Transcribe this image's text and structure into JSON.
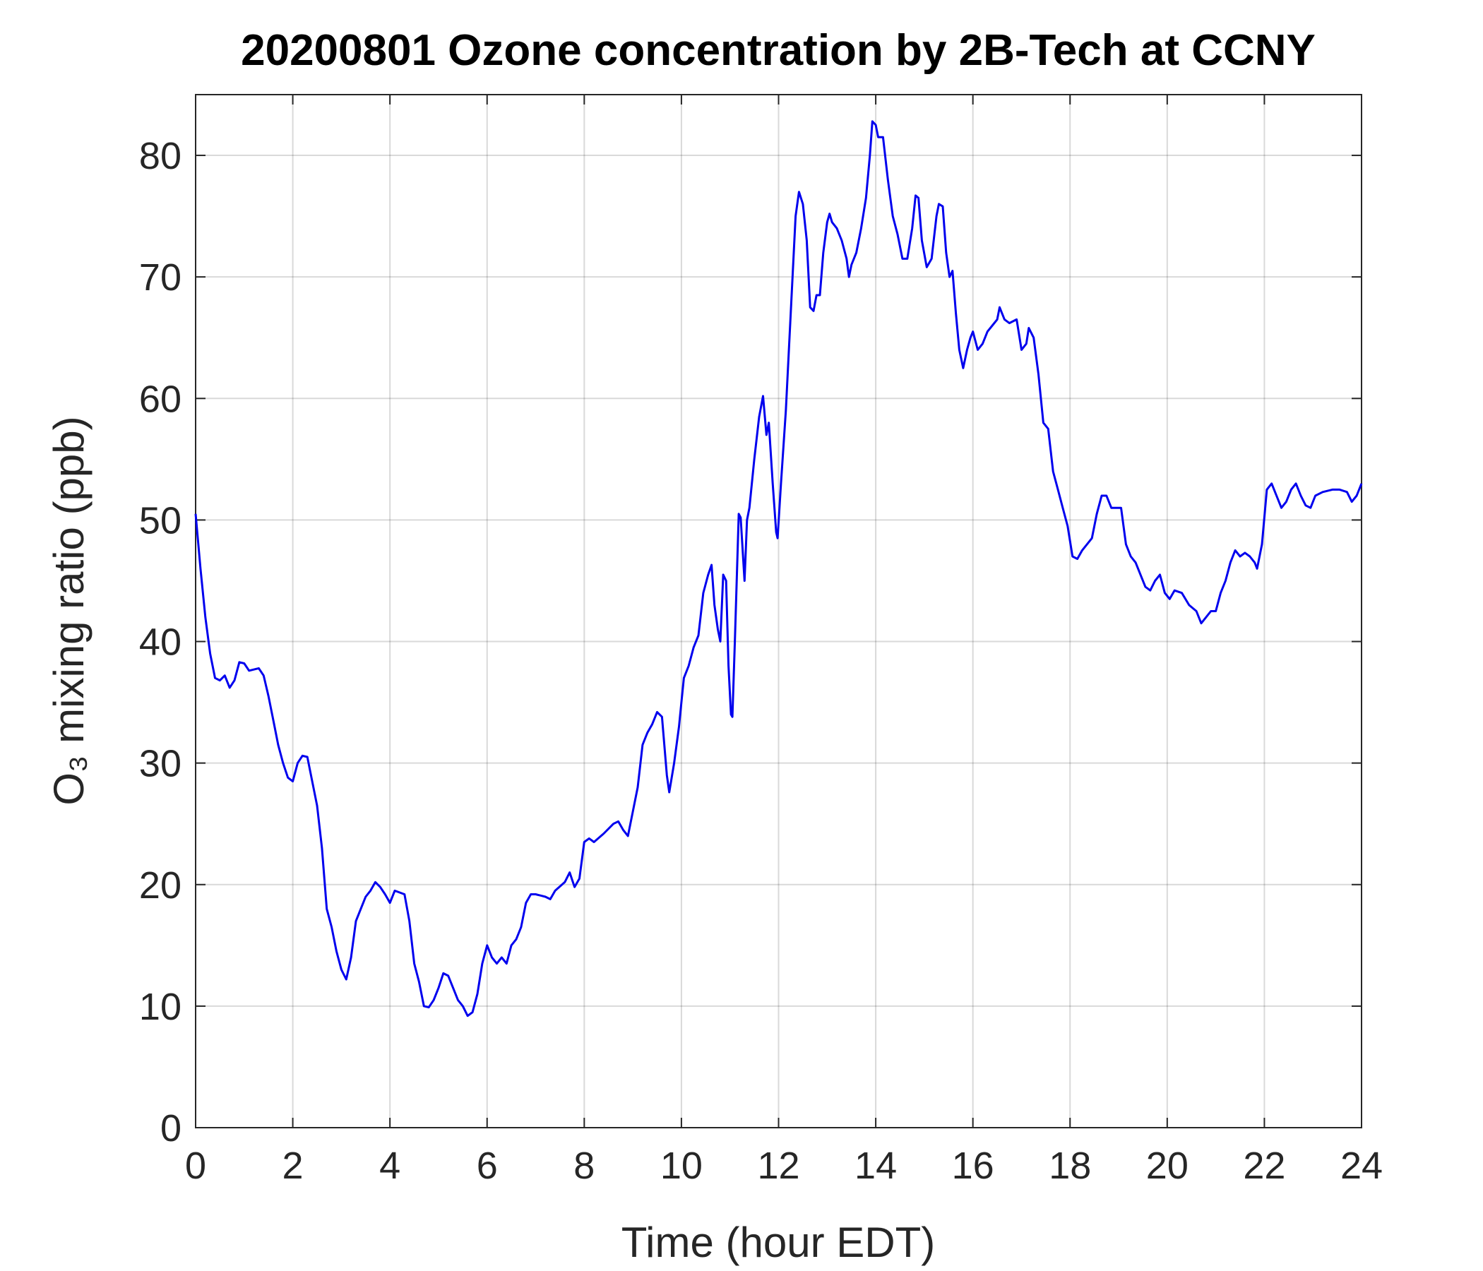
{
  "chart_data": {
    "type": "line",
    "title": "20200801 Ozone concentration by 2B-Tech at CCNY",
    "x_label": "Time (hour EDT)",
    "y_label": "O₃ mixing ratio (ppb)",
    "xlim": [
      0,
      24
    ],
    "ylim": [
      0,
      85
    ],
    "xticks": [
      0,
      2,
      4,
      6,
      8,
      10,
      12,
      14,
      16,
      18,
      20,
      22,
      24
    ],
    "yticks": [
      0,
      10,
      20,
      30,
      40,
      50,
      60,
      70,
      80
    ],
    "grid": true,
    "x": [
      0,
      0.1,
      0.2,
      0.3,
      0.4,
      0.5,
      0.6,
      0.7,
      0.8,
      0.9,
      1.0,
      1.1,
      1.3,
      1.4,
      1.5,
      1.6,
      1.7,
      1.8,
      1.9,
      2.0,
      2.1,
      2.2,
      2.3,
      2.4,
      2.5,
      2.6,
      2.7,
      2.8,
      2.9,
      3.0,
      3.1,
      3.2,
      3.3,
      3.4,
      3.5,
      3.6,
      3.7,
      3.8,
      3.9,
      4.0,
      4.1,
      4.3,
      4.4,
      4.5,
      4.6,
      4.7,
      4.8,
      4.9,
      5.0,
      5.1,
      5.2,
      5.3,
      5.4,
      5.5,
      5.6,
      5.7,
      5.8,
      5.9,
      6.0,
      6.1,
      6.2,
      6.3,
      6.4,
      6.5,
      6.6,
      6.7,
      6.8,
      6.9,
      7.0,
      7.2,
      7.3,
      7.4,
      7.6,
      7.7,
      7.8,
      7.9,
      8.0,
      8.1,
      8.2,
      8.4,
      8.6,
      8.7,
      8.8,
      8.9,
      9.0,
      9.1,
      9.2,
      9.3,
      9.4,
      9.5,
      9.6,
      9.7,
      9.75,
      9.85,
      9.95,
      10.0,
      10.05,
      10.15,
      10.25,
      10.35,
      10.45,
      10.55,
      10.62,
      10.68,
      10.75,
      10.8,
      10.86,
      10.92,
      10.97,
      11.02,
      11.05,
      11.1,
      11.18,
      11.22,
      11.3,
      11.35,
      11.4,
      11.5,
      11.6,
      11.68,
      11.75,
      11.8,
      11.88,
      11.95,
      11.98,
      12.05,
      12.15,
      12.25,
      12.35,
      12.42,
      12.5,
      12.58,
      12.65,
      12.72,
      12.78,
      12.85,
      12.92,
      13.0,
      13.05,
      13.1,
      13.2,
      13.3,
      13.4,
      13.45,
      13.5,
      13.6,
      13.7,
      13.8,
      13.88,
      13.93,
      14.0,
      14.05,
      14.15,
      14.25,
      14.35,
      14.45,
      14.55,
      14.65,
      14.75,
      14.82,
      14.88,
      14.95,
      15.05,
      15.15,
      15.25,
      15.3,
      15.38,
      15.45,
      15.52,
      15.58,
      15.65,
      15.72,
      15.8,
      15.88,
      15.95,
      16.0,
      16.1,
      16.2,
      16.3,
      16.4,
      16.5,
      16.55,
      16.65,
      16.75,
      16.9,
      17.0,
      17.1,
      17.15,
      17.25,
      17.35,
      17.45,
      17.55,
      17.65,
      17.75,
      17.85,
      17.95,
      18.05,
      18.15,
      18.25,
      18.35,
      18.45,
      18.55,
      18.65,
      18.75,
      18.85,
      18.95,
      19.05,
      19.15,
      19.25,
      19.35,
      19.45,
      19.55,
      19.65,
      19.75,
      19.85,
      19.95,
      20.05,
      20.15,
      20.3,
      20.45,
      20.6,
      20.7,
      20.8,
      20.9,
      21.0,
      21.1,
      21.2,
      21.3,
      21.4,
      21.5,
      21.6,
      21.7,
      21.8,
      21.85,
      21.95,
      22.05,
      22.15,
      22.25,
      22.35,
      22.45,
      22.55,
      22.65,
      22.75,
      22.85,
      22.95,
      23.05,
      23.2,
      23.4,
      23.55,
      23.7,
      23.8,
      23.9,
      24.0
    ],
    "series": [
      {
        "color": "#0000ee",
        "values": [
          50.5,
          46,
          42,
          39,
          37,
          36.8,
          37.2,
          36.2,
          36.8,
          38.3,
          38.2,
          37.6,
          37.8,
          37.2,
          35.5,
          33.5,
          31.5,
          30,
          28.8,
          28.5,
          30,
          30.6,
          30.5,
          28.5,
          26.5,
          23,
          18,
          16.5,
          14.5,
          13,
          12.2,
          14,
          17,
          18,
          19,
          19.5,
          20.2,
          19.8,
          19.2,
          18.5,
          19.5,
          19.2,
          17,
          13.5,
          12,
          10,
          9.9,
          10.5,
          11.5,
          12.7,
          12.5,
          11.5,
          10.5,
          10,
          9.2,
          9.5,
          11,
          13.5,
          15,
          14,
          13.5,
          14,
          13.5,
          15,
          15.5,
          16.5,
          18.5,
          19.2,
          19.2,
          19,
          18.8,
          19.5,
          20.2,
          21,
          19.8,
          20.5,
          23.5,
          23.8,
          23.5,
          24.2,
          25,
          25.2,
          24.5,
          24,
          26,
          28,
          31.5,
          32.5,
          33.2,
          34.2,
          33.8,
          29,
          27.6,
          30,
          33,
          35,
          37,
          38,
          39.5,
          40.5,
          44,
          45.5,
          46.3,
          43,
          41,
          40,
          45.5,
          45,
          38,
          34,
          33.8,
          40,
          50.5,
          50.2,
          45,
          50,
          51,
          55,
          58.5,
          60.2,
          57,
          58,
          53,
          49,
          48.5,
          53,
          59,
          67,
          75,
          77,
          76,
          73,
          67.5,
          67.2,
          68.5,
          68.5,
          72,
          74.5,
          75.2,
          74.5,
          74,
          73,
          71.5,
          70,
          71,
          72,
          74,
          76.5,
          80,
          82.8,
          82.5,
          81.5,
          81.5,
          78,
          75,
          73.5,
          71.5,
          71.5,
          74,
          76.7,
          76.5,
          73,
          70.8,
          71.5,
          75,
          76,
          75.8,
          72,
          70,
          70.5,
          67,
          64,
          62.5,
          64,
          65,
          65.5,
          64,
          64.5,
          65.5,
          66,
          66.5,
          67.5,
          66.5,
          66.2,
          66.5,
          64,
          64.5,
          65.8,
          65,
          62,
          58,
          57.5,
          54,
          52.5,
          51,
          49.5,
          47,
          46.8,
          47.5,
          48,
          48.5,
          50.5,
          52,
          52,
          51,
          51,
          51,
          48,
          47,
          46.5,
          45.5,
          44.5,
          44.2,
          45,
          45.5,
          44,
          43.5,
          44.2,
          44,
          43,
          42.5,
          41.5,
          42,
          42.5,
          42.5,
          44,
          45,
          46.5,
          47.5,
          47,
          47.3,
          47,
          46.5,
          46,
          48,
          52.5,
          53,
          52,
          51,
          51.5,
          52.5,
          53,
          52,
          51.2,
          51,
          52,
          52.3,
          52.5,
          52.5,
          52.3,
          51.5,
          52,
          53
        ]
      }
    ]
  }
}
